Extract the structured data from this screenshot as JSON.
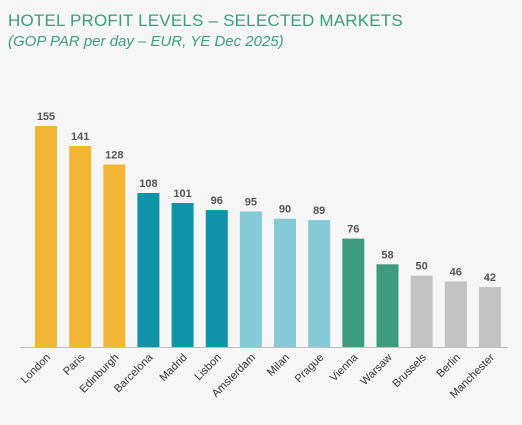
{
  "header": {
    "title": "HOTEL PROFIT LEVELS – SELECTED MARKETS",
    "subtitle": "(GOP PAR per day – EUR, YE Dec 2025)"
  },
  "chart_data": {
    "type": "bar",
    "title": "HOTEL PROFIT LEVELS – SELECTED MARKETS",
    "subtitle": "(GOP PAR per day – EUR, YE Dec 2025)",
    "xlabel": "",
    "ylabel": "",
    "ylim": [
      0,
      155
    ],
    "grid": false,
    "legend": "none",
    "categories": [
      "London",
      "Paris",
      "Edinburgh",
      "Barcelona",
      "Madrid",
      "Lisbon",
      "Amsterdam",
      "Milan",
      "Prague",
      "Vienna",
      "Warsaw",
      "Brussels",
      "Berlin",
      "Manchester"
    ],
    "values": [
      155,
      141,
      128,
      108,
      101,
      96,
      95,
      90,
      89,
      76,
      58,
      50,
      46,
      42
    ],
    "bar_colors": [
      "#f2b535",
      "#f2b535",
      "#f2b535",
      "#0e93a8",
      "#0e93a8",
      "#0e93a8",
      "#85cad6",
      "#85cad6",
      "#85cad6",
      "#3d9c7d",
      "#3d9c7d",
      "#c2c2c2",
      "#c2c2c2",
      "#c2c2c2"
    ]
  }
}
